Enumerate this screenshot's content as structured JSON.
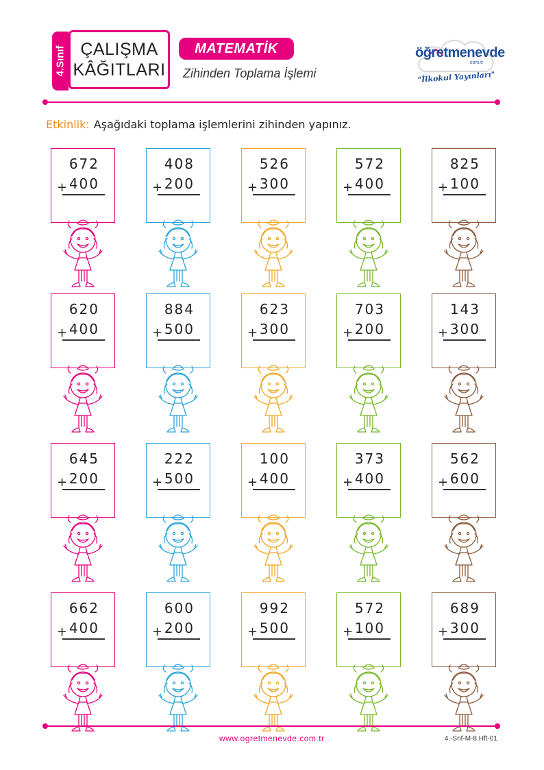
{
  "header": {
    "grade": "4.Sınıf",
    "title_line1": "ÇALIŞMA",
    "title_line2": "KÂĞITLARI",
    "subject": "MATEMATİK",
    "topic": "Zihinden Toplama İşlemi"
  },
  "logo": {
    "name": "öğretmenevde",
    "tld": ".com.tr",
    "tagline": "\"İlkokul Yayınları\""
  },
  "instruction": {
    "label": "Etkinlik:",
    "text": "Aşağıdaki toplama işlemlerini zihinden yapınız."
  },
  "colors": [
    "#e6007e",
    "#2ba3dc",
    "#f3a623",
    "#76b82a",
    "#8b5a3c"
  ],
  "problems": [
    [
      {
        "a": "672",
        "b": "400"
      },
      {
        "a": "408",
        "b": "200"
      },
      {
        "a": "526",
        "b": "300"
      },
      {
        "a": "572",
        "b": "400"
      },
      {
        "a": "825",
        "b": "100"
      }
    ],
    [
      {
        "a": "620",
        "b": "400"
      },
      {
        "a": "884",
        "b": "500"
      },
      {
        "a": "623",
        "b": "300"
      },
      {
        "a": "703",
        "b": "200"
      },
      {
        "a": "143",
        "b": "300"
      }
    ],
    [
      {
        "a": "645",
        "b": "200"
      },
      {
        "a": "222",
        "b": "500"
      },
      {
        "a": "100",
        "b": "400"
      },
      {
        "a": "373",
        "b": "400"
      },
      {
        "a": "562",
        "b": "600"
      }
    ],
    [
      {
        "a": "662",
        "b": "400"
      },
      {
        "a": "600",
        "b": "200"
      },
      {
        "a": "992",
        "b": "500"
      },
      {
        "a": "572",
        "b": "100"
      },
      {
        "a": "689",
        "b": "300"
      }
    ]
  ],
  "operator": "+",
  "footer": {
    "url": "www.ogretmenevde.com.tr",
    "code": "4.-Snf-M-8.Hft-01"
  }
}
